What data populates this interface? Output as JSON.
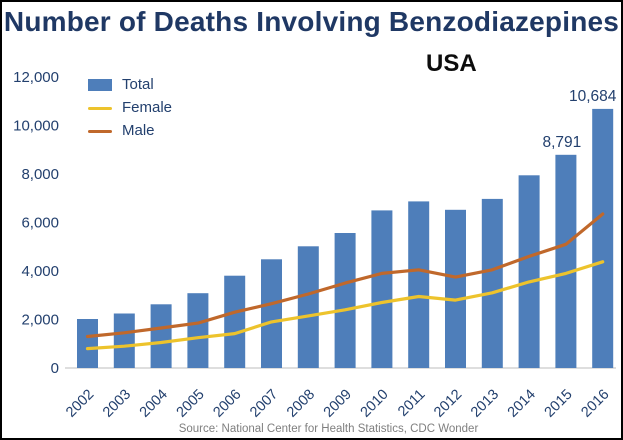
{
  "colors": {
    "bar": "#4e7eba",
    "female": "#edc32c",
    "male": "#c0682b",
    "title": "#1f3864",
    "axis": "#23406e",
    "usa": "#0d0d0d",
    "source": "#7f7f7f",
    "baseline": "#c9c9c9",
    "frame": "#000000"
  },
  "chart_data": {
    "type": "bar",
    "title": "Number of Deaths Involving Benzodiazepines",
    "region_label": "USA",
    "xlabel": "",
    "ylabel": "",
    "ylim": [
      0,
      12000
    ],
    "ytick_step": 2000,
    "yticks": [
      "0",
      "2,000",
      "4,000",
      "6,000",
      "8,000",
      "10,000",
      "12,000"
    ],
    "grid": false,
    "legend_position": "top-left",
    "categories": [
      "2002",
      "2003",
      "2004",
      "2005",
      "2006",
      "2007",
      "2008",
      "2009",
      "2010",
      "2011",
      "2012",
      "2013",
      "2014",
      "2015",
      "2016"
    ],
    "series": [
      {
        "name": "Total",
        "type": "bar",
        "color": "#4e7eba",
        "values": [
          2022,
          2248,
          2627,
          3084,
          3805,
          4481,
          5017,
          5567,
          6497,
          6872,
          6524,
          6973,
          7945,
          8791,
          10684
        ]
      },
      {
        "name": "Female",
        "type": "line",
        "color": "#edc32c",
        "values": [
          800,
          900,
          1050,
          1250,
          1420,
          1900,
          2150,
          2400,
          2700,
          2950,
          2800,
          3100,
          3550,
          3900,
          4380
        ]
      },
      {
        "name": "Male",
        "type": "line",
        "color": "#c0682b",
        "values": [
          1300,
          1450,
          1650,
          1850,
          2300,
          2650,
          3050,
          3500,
          3900,
          4050,
          3750,
          4050,
          4600,
          5100,
          6350
        ]
      }
    ],
    "data_labels": [
      {
        "category": "2015",
        "label": "8,791"
      },
      {
        "category": "2016",
        "label": "10,684"
      }
    ]
  },
  "footer": {
    "source_text": "Source: National Center for Health Statistics, CDC Wonder"
  }
}
